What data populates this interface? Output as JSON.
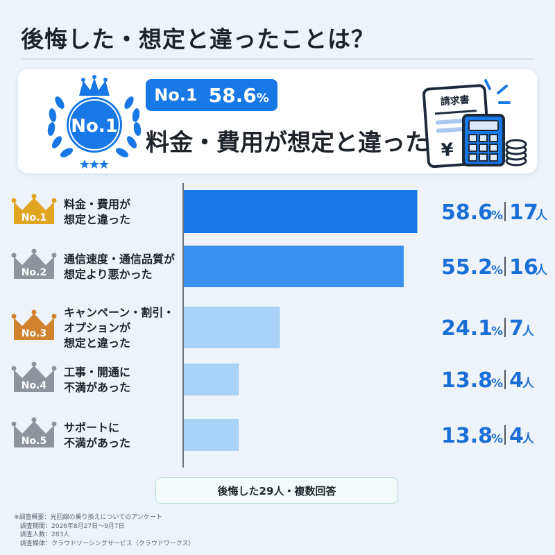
{
  "title": "後悔した・想定と違ったことは？",
  "hero": {
    "badge_text": "No.1",
    "rank": "No.1",
    "percent_value": "58.6",
    "percent_unit": "%",
    "headline": "料金・費用が想定と違った",
    "invoice_label": "請求書",
    "invoice_symbol": "¥"
  },
  "chart_data": {
    "type": "bar",
    "orientation": "horizontal",
    "categories": [
      [
        "料金・費用が",
        "想定と違った"
      ],
      [
        "通信速度・通信品質が",
        "想定より悪かった"
      ],
      [
        "キャンペーン・割引・",
        "オプションが",
        "想定と違った"
      ],
      [
        "工事・開通に",
        "不満があった"
      ],
      [
        "サポートに",
        "不満があった"
      ]
    ],
    "ranks": [
      "No.1",
      "No.2",
      "No.3",
      "No.4",
      "No.5"
    ],
    "values": [
      58.6,
      55.2,
      24.1,
      13.8,
      13.8
    ],
    "value_labels": [
      "58.6",
      "55.2",
      "24.1",
      "13.8",
      "13.8"
    ],
    "percent_unit": "%",
    "counts": [
      "17",
      "16",
      "7",
      "4",
      "4"
    ],
    "count_unit": "人",
    "xlim": [
      0,
      62
    ],
    "colors": {
      "bars": [
        "#1778e6",
        "#3a90ec",
        "#a8d2f7",
        "#a8d2f7",
        "#a8d2f7"
      ],
      "crowns": [
        "#e0a520",
        "#8e949b",
        "#d0822c",
        "#8e949b",
        "#8e949b"
      ],
      "value_text": "#1a6fd6"
    }
  },
  "footer": "後悔した29人・複数回答",
  "notes": [
    "※調査概要：光回線の乗り換えについてのアンケート",
    "　調査期間：2026年8月27日〜9月7日",
    "　調査人数：283人",
    "　調査媒体：クラウドソーシングサービス（クラウドワークス）"
  ]
}
